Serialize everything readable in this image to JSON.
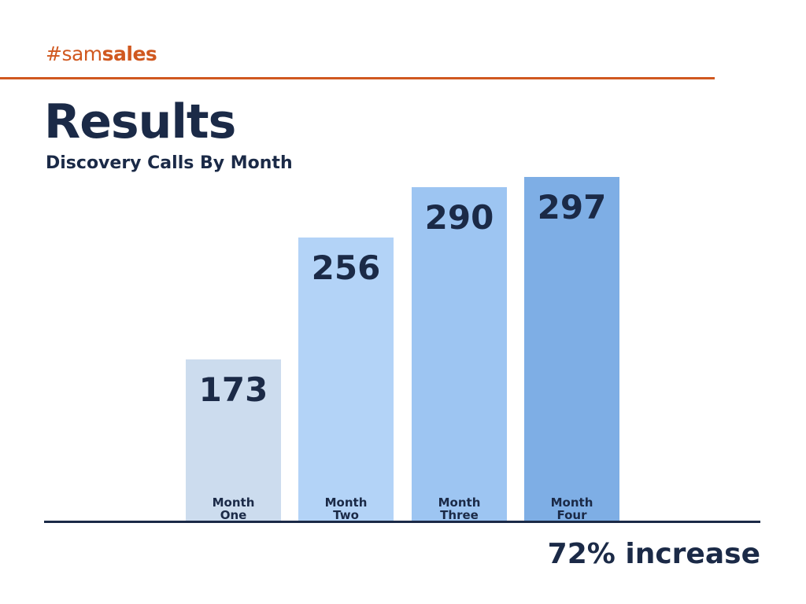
{
  "brand": {
    "prefix": "#sam",
    "suffix": "sales"
  },
  "header": {
    "title": "Results",
    "subtitle": "Discovery Calls By Month"
  },
  "footer": {
    "note": "72% increase"
  },
  "colors": {
    "accent": "#d0581f",
    "navy": "#1b2a47"
  },
  "chart_data": {
    "type": "bar",
    "title": "Discovery Calls By Month",
    "categories": [
      [
        "Month",
        "One"
      ],
      [
        "Month",
        "Two"
      ],
      [
        "Month",
        "Three"
      ],
      [
        "Month",
        "Four"
      ]
    ],
    "values": [
      173,
      256,
      290,
      297
    ],
    "value_labels": [
      "173",
      "256",
      "290",
      "297"
    ],
    "colors": [
      "#ccdcee",
      "#b3d3f7",
      "#9dc5f2",
      "#7eaee5"
    ],
    "ylim": [
      63,
      297
    ],
    "xlabel": "",
    "ylabel": "",
    "grid": false
  }
}
